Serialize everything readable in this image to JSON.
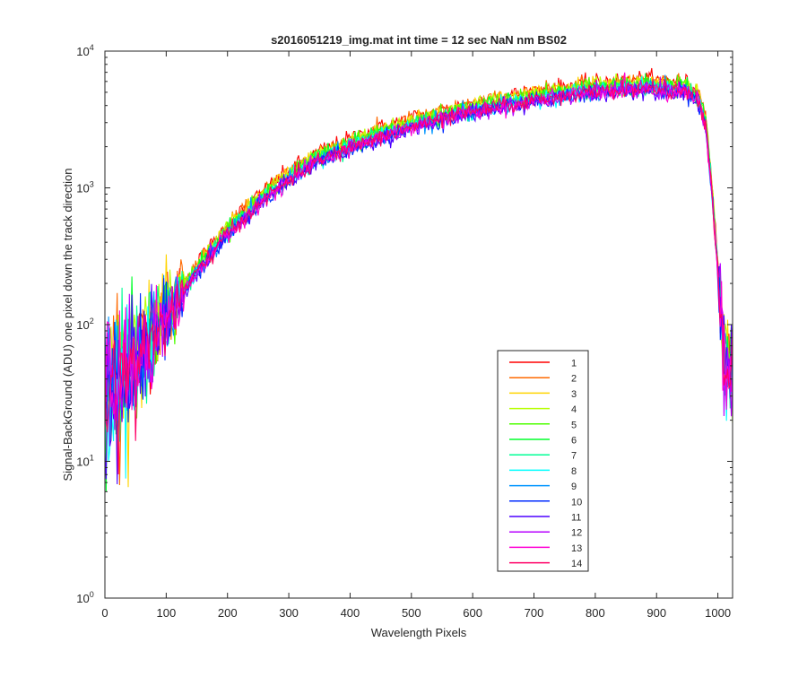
{
  "chart_data": {
    "type": "line",
    "title": "s2016051219_img.mat int time = 12 sec  NaN nm BS02",
    "xlabel": "Wavelength Pixels",
    "ylabel": "Signal-BackGround (ADU) one pixel down the track direction",
    "xlim": [
      0,
      1024
    ],
    "ylim": [
      1,
      10000
    ],
    "yscale": "log",
    "grid": false,
    "legend_position": "lower-right",
    "x_ticks": [
      0,
      100,
      200,
      300,
      400,
      500,
      600,
      700,
      800,
      900,
      1000
    ],
    "x_tick_labels": [
      "0",
      "100",
      "200",
      "300",
      "400",
      "500",
      "600",
      "700",
      "800",
      "900",
      "1000"
    ],
    "y_ticks": [
      1,
      10,
      100,
      1000,
      10000
    ],
    "y_tick_labels": [
      {
        "base": "10",
        "exp": "0"
      },
      {
        "base": "10",
        "exp": "1"
      },
      {
        "base": "10",
        "exp": "2"
      },
      {
        "base": "10",
        "exp": "3"
      },
      {
        "base": "10",
        "exp": "4"
      }
    ],
    "profile_x": [
      0,
      20,
      50,
      80,
      100,
      150,
      200,
      250,
      300,
      350,
      400,
      450,
      500,
      550,
      600,
      650,
      700,
      750,
      800,
      850,
      880,
      900,
      930,
      950,
      960,
      970,
      980,
      990,
      1000,
      1005,
      1010,
      1015,
      1020,
      1024
    ],
    "series": [
      {
        "name": "1",
        "color": "#ff0000",
        "scale": 1.12,
        "values": [
          30,
          40,
          55,
          85,
          115,
          250,
          480,
          780,
          1200,
          1650,
          2050,
          2450,
          2900,
          3300,
          3750,
          4150,
          4550,
          4950,
          5250,
          5450,
          5550,
          5500,
          5350,
          5200,
          4900,
          4300,
          3000,
          1000,
          250,
          110,
          60,
          45,
          40,
          45
        ]
      },
      {
        "name": "2",
        "color": "#ff6a00",
        "scale": 1.1,
        "values": [
          30,
          40,
          55,
          85,
          115,
          250,
          480,
          780,
          1200,
          1650,
          2050,
          2450,
          2900,
          3300,
          3750,
          4150,
          4550,
          4950,
          5250,
          5450,
          5550,
          5500,
          5350,
          5200,
          4900,
          4300,
          3000,
          1000,
          250,
          110,
          60,
          45,
          40,
          45
        ]
      },
      {
        "name": "3",
        "color": "#ffd400",
        "scale": 1.08,
        "values": [
          30,
          40,
          55,
          85,
          115,
          250,
          480,
          780,
          1200,
          1650,
          2050,
          2450,
          2900,
          3300,
          3750,
          4150,
          4550,
          4950,
          5250,
          5450,
          5550,
          5500,
          5350,
          5200,
          4900,
          4300,
          3000,
          1000,
          250,
          110,
          60,
          45,
          40,
          45
        ]
      },
      {
        "name": "4",
        "color": "#b7ff00",
        "scale": 1.06,
        "values": [
          30,
          40,
          55,
          85,
          115,
          250,
          480,
          780,
          1200,
          1650,
          2050,
          2450,
          2900,
          3300,
          3750,
          4150,
          4550,
          4950,
          5250,
          5450,
          5550,
          5500,
          5350,
          5200,
          4900,
          4300,
          3000,
          1000,
          250,
          110,
          60,
          45,
          40,
          45
        ]
      },
      {
        "name": "5",
        "color": "#4dff00",
        "scale": 1.04,
        "values": [
          30,
          40,
          55,
          85,
          115,
          250,
          480,
          780,
          1200,
          1650,
          2050,
          2450,
          2900,
          3300,
          3750,
          4150,
          4550,
          4950,
          5250,
          5450,
          5550,
          5500,
          5350,
          5200,
          4900,
          4300,
          3000,
          1000,
          250,
          110,
          60,
          45,
          40,
          45
        ]
      },
      {
        "name": "6",
        "color": "#00ff2b",
        "scale": 1.02,
        "values": [
          30,
          40,
          55,
          85,
          115,
          250,
          480,
          780,
          1200,
          1650,
          2050,
          2450,
          2900,
          3300,
          3750,
          4150,
          4550,
          4950,
          5250,
          5450,
          5550,
          5500,
          5350,
          5200,
          4900,
          4300,
          3000,
          1000,
          250,
          110,
          60,
          45,
          40,
          45
        ]
      },
      {
        "name": "7",
        "color": "#00ff95",
        "scale": 1.0,
        "values": [
          30,
          40,
          55,
          85,
          115,
          250,
          480,
          780,
          1200,
          1650,
          2050,
          2450,
          2900,
          3300,
          3750,
          4150,
          4550,
          4950,
          5250,
          5450,
          5550,
          5500,
          5350,
          5200,
          4900,
          4300,
          3000,
          1000,
          250,
          110,
          60,
          45,
          40,
          45
        ]
      },
      {
        "name": "8",
        "color": "#00ffff",
        "scale": 0.98,
        "values": [
          30,
          40,
          55,
          85,
          115,
          250,
          480,
          780,
          1200,
          1650,
          2050,
          2450,
          2900,
          3300,
          3750,
          4150,
          4550,
          4950,
          5250,
          5450,
          5550,
          5500,
          5350,
          5200,
          4900,
          4300,
          3000,
          1000,
          250,
          110,
          60,
          45,
          40,
          45
        ]
      },
      {
        "name": "9",
        "color": "#0095ff",
        "scale": 0.96,
        "values": [
          30,
          40,
          55,
          85,
          115,
          250,
          480,
          780,
          1200,
          1650,
          2050,
          2450,
          2900,
          3300,
          3750,
          4150,
          4550,
          4950,
          5250,
          5450,
          5550,
          5500,
          5350,
          5200,
          4900,
          4300,
          3000,
          1000,
          250,
          110,
          60,
          45,
          40,
          45
        ]
      },
      {
        "name": "10",
        "color": "#002bff",
        "scale": 0.94,
        "values": [
          30,
          40,
          55,
          85,
          115,
          250,
          480,
          780,
          1200,
          1650,
          2050,
          2450,
          2900,
          3300,
          3750,
          4150,
          4550,
          4950,
          5250,
          5450,
          5550,
          5500,
          5350,
          5200,
          4900,
          4300,
          3000,
          1000,
          250,
          110,
          60,
          45,
          40,
          45
        ]
      },
      {
        "name": "11",
        "color": "#4d00ff",
        "scale": 0.94,
        "values": [
          30,
          40,
          55,
          85,
          115,
          250,
          480,
          780,
          1200,
          1650,
          2050,
          2450,
          2900,
          3300,
          3750,
          4150,
          4550,
          4950,
          5250,
          5450,
          5550,
          5500,
          5350,
          5200,
          4900,
          4300,
          3000,
          1000,
          250,
          110,
          60,
          45,
          40,
          45
        ]
      },
      {
        "name": "12",
        "color": "#b700ff",
        "scale": 0.95,
        "values": [
          30,
          40,
          55,
          85,
          115,
          250,
          480,
          780,
          1200,
          1650,
          2050,
          2450,
          2900,
          3300,
          3750,
          4150,
          4550,
          4950,
          5250,
          5450,
          5550,
          5500,
          5350,
          5200,
          4900,
          4300,
          3000,
          1000,
          250,
          110,
          60,
          45,
          40,
          45
        ]
      },
      {
        "name": "13",
        "color": "#ff00d4",
        "scale": 0.95,
        "values": [
          30,
          40,
          55,
          85,
          115,
          250,
          480,
          780,
          1200,
          1650,
          2050,
          2450,
          2900,
          3300,
          3750,
          4150,
          4550,
          4950,
          5250,
          5450,
          5550,
          5500,
          5350,
          5200,
          4900,
          4300,
          3000,
          1000,
          250,
          110,
          60,
          45,
          40,
          45
        ]
      },
      {
        "name": "14",
        "color": "#ff0066",
        "scale": 0.96,
        "values": [
          30,
          40,
          55,
          85,
          115,
          250,
          480,
          780,
          1200,
          1650,
          2050,
          2450,
          2900,
          3300,
          3750,
          4150,
          4550,
          4950,
          5250,
          5450,
          5550,
          5500,
          5350,
          5200,
          4900,
          4300,
          3000,
          1000,
          250,
          110,
          60,
          45,
          40,
          45
        ]
      }
    ]
  }
}
